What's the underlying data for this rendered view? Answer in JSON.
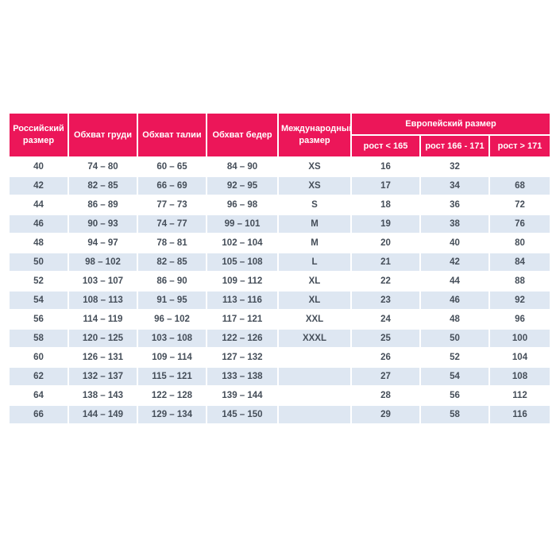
{
  "colors": {
    "accent": "#EC1659",
    "stripe": "#DEE7F2",
    "text": "#454E59"
  },
  "table": {
    "headers": {
      "russian_size": "Российский размер",
      "chest": "Обхват груди",
      "waist": "Обхват талии",
      "hips": "Обхват бедер",
      "international": "Международный размер",
      "european_group": "Европейский размер",
      "height_lt_165": "рост < 165",
      "height_166_171": "рост 166 - 171",
      "height_gt_171": "рост > 171"
    },
    "column_keys": [
      "russian_size",
      "chest",
      "waist",
      "hips",
      "international",
      "height_lt_165",
      "height_166_171",
      "height_gt_171"
    ],
    "rows": [
      [
        "40",
        "74 – 80",
        "60 – 65",
        "84 – 90",
        "XS",
        "16",
        "32",
        ""
      ],
      [
        "42",
        "82 – 85",
        "66 – 69",
        "92 – 95",
        "XS",
        "17",
        "34",
        "68"
      ],
      [
        "44",
        "86 – 89",
        "77 – 73",
        "96 – 98",
        "S",
        "18",
        "36",
        "72"
      ],
      [
        "46",
        "90 – 93",
        "74 – 77",
        "99 – 101",
        "M",
        "19",
        "38",
        "76"
      ],
      [
        "48",
        "94 – 97",
        "78 – 81",
        "102 – 104",
        "M",
        "20",
        "40",
        "80"
      ],
      [
        "50",
        "98 – 102",
        "82 – 85",
        "105 – 108",
        "L",
        "21",
        "42",
        "84"
      ],
      [
        "52",
        "103 – 107",
        "86 – 90",
        "109 – 112",
        "XL",
        "22",
        "44",
        "88"
      ],
      [
        "54",
        "108 – 113",
        "91 – 95",
        "113 – 116",
        "XL",
        "23",
        "46",
        "92"
      ],
      [
        "56",
        "114 – 119",
        "96 – 102",
        "117 – 121",
        "XXL",
        "24",
        "48",
        "96"
      ],
      [
        "58",
        "120 – 125",
        "103 – 108",
        "122 – 126",
        "XXXL",
        "25",
        "50",
        "100"
      ],
      [
        "60",
        "126 – 131",
        "109 – 114",
        "127 – 132",
        "",
        "26",
        "52",
        "104"
      ],
      [
        "62",
        "132 – 137",
        "115 – 121",
        "133 – 138",
        "",
        "27",
        "54",
        "108"
      ],
      [
        "64",
        "138 – 143",
        "122 – 128",
        "139 – 144",
        "",
        "28",
        "56",
        "112"
      ],
      [
        "66",
        "144 – 149",
        "129 – 134",
        "145 – 150",
        "",
        "29",
        "58",
        "116"
      ]
    ]
  }
}
